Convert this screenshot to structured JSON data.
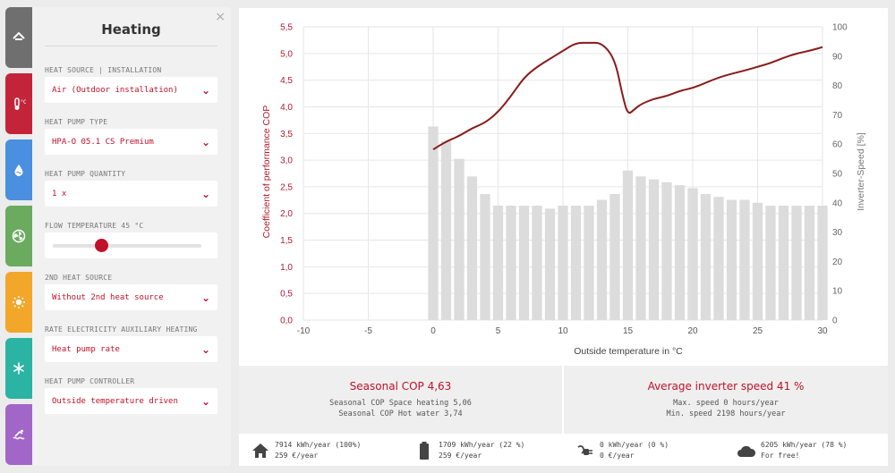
{
  "rail": {
    "items": [
      {
        "name": "rail-house",
        "color": "#6f6f6f",
        "icon": "house-icon"
      },
      {
        "name": "rail-heating",
        "color": "#c4243a",
        "icon": "thermometer-icon"
      },
      {
        "name": "rail-water",
        "color": "#4a8fe0",
        "icon": "water-drop-icon"
      },
      {
        "name": "rail-ventilation",
        "color": "#6aab5f",
        "icon": "fan-icon"
      },
      {
        "name": "rail-solar",
        "color": "#f2a72a",
        "icon": "sun-icon"
      },
      {
        "name": "rail-cooling",
        "color": "#2bb3a3",
        "icon": "snowflake-icon"
      },
      {
        "name": "rail-pool",
        "color": "#a266c8",
        "icon": "pool-icon"
      }
    ]
  },
  "panel": {
    "title": "Heating",
    "close": "×",
    "fields": [
      {
        "label": "HEAT SOURCE | INSTALLATION",
        "value": "Air (Outdoor installation)"
      },
      {
        "label": "HEAT PUMP TYPE",
        "value": "HPA-O 05.1 CS Premium"
      },
      {
        "label": "HEAT PUMP QUANTITY",
        "value": "1 x"
      },
      {
        "label": "FLOW TEMPERATURE 45 °C",
        "slider_fraction": 0.33
      },
      {
        "label": "2ND HEAT SOURCE",
        "value": "Without 2nd heat source"
      },
      {
        "label": "RATE ELECTRICITY AUXILIARY HEATING",
        "value": "Heat pump rate"
      },
      {
        "label": "HEAT PUMP CONTROLLER",
        "value": "Outside temperature driven"
      }
    ]
  },
  "chart_data": {
    "type": "bar+line",
    "xlabel": "Outside temperature in °C",
    "ylabel_left": "Coefficient of performance COP",
    "ylabel_right": "Inverter-Speed [%]",
    "x_ticks": [
      "-10",
      "-5",
      "0",
      "5",
      "10",
      "15",
      "20",
      "25",
      "30"
    ],
    "xlim": [
      -10,
      30
    ],
    "y_left_ticks": [
      "0,0",
      "0,5",
      "1,0",
      "1,5",
      "2,0",
      "2,5",
      "3,0",
      "3,5",
      "4,0",
      "4,5",
      "5,0",
      "5,5"
    ],
    "y_left_lim": [
      0,
      5.5
    ],
    "y_right_ticks": [
      "0",
      "10",
      "20",
      "30",
      "40",
      "50",
      "60",
      "70",
      "80",
      "90",
      "100"
    ],
    "y_right_lim": [
      0,
      100
    ],
    "grid": true,
    "bar_color": "#dcdcdc",
    "line_color": "#8b1a1a",
    "inverter_speed_bars": {
      "x": [
        0,
        1,
        2,
        3,
        4,
        5,
        6,
        7,
        8,
        9,
        10,
        11,
        12,
        13,
        14,
        15,
        16,
        17,
        18,
        19,
        20,
        21,
        22,
        23,
        24,
        25,
        26,
        27,
        28,
        29,
        30
      ],
      "values": [
        66,
        61,
        55,
        49,
        43,
        39,
        39,
        39,
        39,
        38,
        39,
        39,
        39,
        41,
        43,
        51,
        49,
        48,
        47,
        46,
        45,
        43,
        42,
        41,
        41,
        40,
        39,
        39,
        39,
        39,
        39
      ]
    },
    "cop_line": {
      "x": [
        0,
        1,
        2,
        3,
        4,
        5,
        6,
        7,
        8,
        9,
        10,
        11,
        12,
        13,
        14,
        14.6,
        15,
        15.5,
        16,
        17,
        18,
        19,
        20,
        21,
        22,
        23,
        24,
        25,
        26,
        27,
        28,
        29,
        30
      ],
      "values": [
        3.2,
        3.35,
        3.45,
        3.6,
        3.7,
        3.9,
        4.2,
        4.55,
        4.75,
        4.9,
        5.05,
        5.2,
        5.2,
        5.2,
        4.9,
        4.2,
        3.85,
        3.95,
        4.05,
        4.15,
        4.2,
        4.3,
        4.35,
        4.45,
        4.55,
        4.62,
        4.68,
        4.75,
        4.82,
        4.92,
        5.0,
        5.05,
        5.12
      ]
    }
  },
  "summary": {
    "cop": {
      "title": "Seasonal COP 4,63",
      "line1": "Seasonal COP Space heating 5,06",
      "line2": "Seasonal COP Hot water 3,74"
    },
    "inverter": {
      "title": "Average inverter speed 41 %",
      "line1": "Max. speed 0 hours/year",
      "line2": "Min. speed 2198 hours/year"
    }
  },
  "energy": [
    {
      "icon": "house-icon",
      "line1": "7914 kWh/year (100%)",
      "line2": "259 €/year"
    },
    {
      "icon": "battery-icon",
      "line1": "1709 kWh/year (22 %)",
      "line2": "259 €/year"
    },
    {
      "icon": "plug-icon",
      "line1": "0 kWh/year (0 %)",
      "line2": "0 €/year"
    },
    {
      "icon": "cloud-icon",
      "line1": "6205 kWh/year (78 %)",
      "line2": "For free!"
    }
  ]
}
